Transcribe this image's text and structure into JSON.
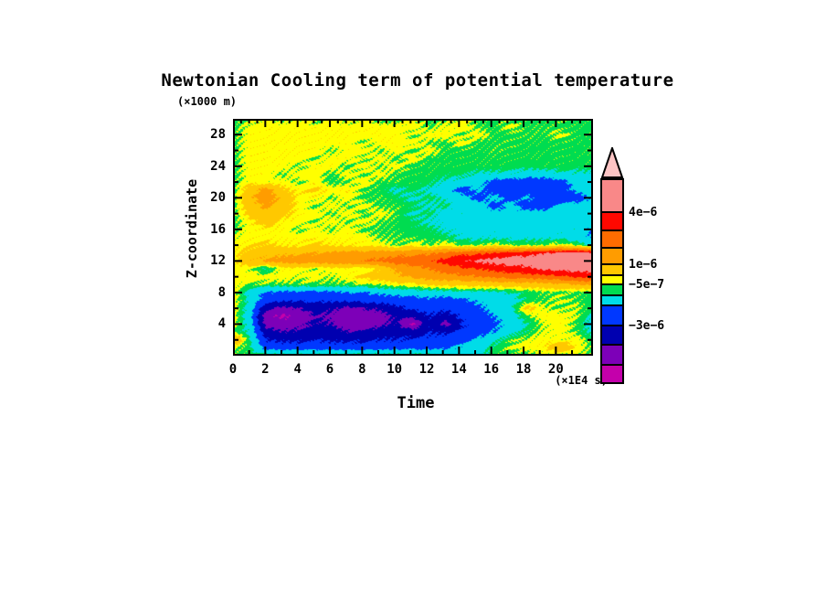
{
  "figure": {
    "title": "Newtonian Cooling term of potential temperature",
    "background": "#ffffff"
  },
  "axes": {
    "y_unit_label": "(×1000 m)",
    "y_label": "Z-coordinate",
    "x_label": "Time",
    "x_unit_label": "(×1E4 s)",
    "x_range": [
      0,
      22.3
    ],
    "y_range": [
      0,
      30
    ],
    "x_ticks_major": [
      0,
      2,
      4,
      6,
      8,
      10,
      12,
      14,
      16,
      18,
      20
    ],
    "x_ticks_minor": [
      1,
      3,
      5,
      7,
      9,
      11,
      13,
      15,
      17,
      19,
      21
    ],
    "y_ticks_major": [
      4,
      8,
      12,
      16,
      20,
      24,
      28
    ],
    "y_ticks_minor": [
      2,
      6,
      10,
      14,
      18,
      22,
      26
    ]
  },
  "colorbar": {
    "arrow_color": "#fcc4c4",
    "box_colors": [
      "#f98888",
      "#ff0800",
      "#ff6c00",
      "#ff9c00",
      "#ffc800",
      "#ffff00",
      "#00dc50",
      "#00dce8",
      "#0038ff",
      "#0000b0",
      "#7d00b8",
      "#c400ab"
    ],
    "labels": [
      {
        "text": "4e−6",
        "box_boundary": 1
      },
      {
        "text": "1e−6",
        "box_boundary": 4
      },
      {
        "text": "−5e−7",
        "box_boundary": 6
      },
      {
        "text": "−3e−6",
        "box_boundary": 9
      }
    ]
  },
  "chart_data": {
    "type": "heatmap",
    "title": "Newtonian Cooling term of potential temperature",
    "xlabel": "Time (×1E4 s)",
    "ylabel": "Z-coordinate (×1000 m)",
    "x_range": [
      0,
      22.3
    ],
    "z_range": [
      0,
      30
    ],
    "value_scale": 1e-07,
    "contour_levels_1e7": [
      -50,
      -40,
      -30,
      -20,
      -10,
      -5,
      0,
      10,
      20,
      30,
      40,
      60
    ],
    "level_colors": [
      "#c400ab",
      "#7d00b8",
      "#0000b0",
      "#0038ff",
      "#00dce8",
      "#00dc50",
      "#ffff00",
      "#ffc800",
      "#ff9c00",
      "#ff6c00",
      "#ff0800",
      "#f98888",
      "#fcc4c4"
    ],
    "x_values": [
      0,
      1,
      2,
      3,
      4,
      5,
      6,
      7,
      8,
      9,
      10,
      11,
      12,
      13,
      14,
      15,
      16,
      17,
      18,
      19,
      20,
      21,
      22
    ],
    "z_values": [
      30,
      29,
      28,
      27,
      26,
      25,
      24,
      23,
      22,
      21,
      20,
      19,
      18,
      17,
      16,
      15,
      14,
      13,
      12,
      11,
      10,
      9,
      8,
      7,
      6,
      5,
      4,
      3,
      2,
      1,
      0
    ],
    "rows_order": "z_descending",
    "grid_1e7": [
      [
        -7,
        -5,
        -3,
        -6,
        -3,
        -7,
        -3,
        -6,
        -3,
        -7,
        -6,
        -3,
        -7,
        -6,
        -3,
        -7,
        -7,
        -6,
        -7,
        -7,
        -6,
        -7,
        -7
      ],
      [
        -7,
        -3,
        -2,
        -2,
        -2,
        -2,
        -2,
        -2,
        -2,
        -2,
        -3,
        -2,
        -6,
        -3,
        -2,
        -6,
        -7,
        -3,
        -7,
        -6,
        -7,
        -7,
        -7
      ],
      [
        -7,
        -2,
        -2,
        -2,
        -2,
        -2,
        -2,
        -2,
        -2,
        -2,
        -2,
        -6,
        -2,
        -2,
        -6,
        -2,
        -7,
        -7,
        -6,
        -7,
        -3,
        -7,
        -7
      ],
      [
        -7,
        -2,
        -2,
        -2,
        -2,
        -2,
        -2,
        -2,
        -6,
        -2,
        -2,
        -2,
        -6,
        -7,
        -2,
        -7,
        -7,
        -6,
        -7,
        -7,
        -7,
        -7,
        -7
      ],
      [
        -7,
        -2,
        -2,
        -2,
        -2,
        -2,
        -6,
        -2,
        -2,
        -6,
        -2,
        -7,
        -2,
        -7,
        -7,
        -7,
        -6,
        -7,
        -7,
        -7,
        -7,
        -7,
        -7
      ],
      [
        -7,
        -2,
        -2,
        -2,
        -2,
        -6,
        -2,
        -2,
        -6,
        -2,
        -7,
        -2,
        -7,
        -7,
        -7,
        -7,
        -7,
        -7,
        -7,
        -7,
        -7,
        -7,
        -7
      ],
      [
        -7,
        -2,
        -2,
        -2,
        -6,
        -2,
        -2,
        -7,
        -2,
        -6,
        -2,
        -7,
        -7,
        -7,
        -7,
        -7,
        -7,
        -7,
        -8,
        -7,
        -7,
        -8,
        -7
      ],
      [
        -7,
        -2,
        -2,
        -6,
        -2,
        -2,
        -7,
        -2,
        -6,
        -2,
        -7,
        -7,
        -7,
        -8,
        -8,
        -12,
        -12,
        -12,
        -15,
        -15,
        -12,
        -12,
        -12
      ],
      [
        -7,
        -2,
        -3,
        -2,
        -6,
        -2,
        -7,
        -6,
        -2,
        -7,
        -6,
        -7,
        -8,
        -12,
        -14,
        -16,
        -25,
        -25,
        -28,
        -26,
        -25,
        -16,
        -15
      ],
      [
        -7,
        5,
        15,
        2,
        -1,
        2,
        -2,
        -1,
        -6,
        -7,
        -12,
        -8,
        -12,
        -15,
        -25,
        -18,
        -25,
        -26,
        -25,
        -26,
        -25,
        -18,
        -15
      ],
      [
        -7,
        8,
        15,
        8,
        -2,
        -2,
        -6,
        -2,
        -7,
        -6,
        -8,
        -12,
        -8,
        -12,
        -15,
        -25,
        -16,
        -25,
        -18,
        -26,
        -25,
        -25,
        -18
      ],
      [
        -7,
        5,
        12,
        5,
        -2,
        -6,
        -2,
        -6,
        -2,
        -7,
        -6,
        -8,
        -12,
        -8,
        -15,
        -12,
        -25,
        -16,
        -25,
        -25,
        -18,
        -16,
        -15
      ],
      [
        -7,
        3,
        8,
        3,
        -2,
        -2,
        -6,
        -2,
        -7,
        -2,
        -6,
        -12,
        -8,
        -15,
        -12,
        -16,
        -15,
        -18,
        -15,
        -16,
        -15,
        -12,
        -12
      ],
      [
        -7,
        -2,
        5,
        -2,
        -2,
        -6,
        -2,
        -6,
        -2,
        -6,
        -7,
        -8,
        -12,
        -12,
        -15,
        -12,
        -15,
        -12,
        -15,
        -12,
        -15,
        -15,
        -12
      ],
      [
        -7,
        -2,
        -2,
        -2,
        -6,
        -2,
        -6,
        -2,
        -7,
        -6,
        -7,
        -8,
        -8,
        -12,
        -12,
        -15,
        -12,
        -15,
        -12,
        -15,
        -12,
        -12,
        -22
      ],
      [
        -4,
        -2,
        -2,
        -2,
        -2,
        -2,
        -2,
        -2,
        -2,
        -6,
        -6,
        -7,
        -7,
        -8,
        -12,
        -12,
        -12,
        -12,
        -12,
        -12,
        -12,
        -15,
        -20
      ],
      [
        -2,
        -1,
        2,
        -1,
        -1,
        2,
        -1,
        -1,
        -2,
        -2,
        -6,
        -2,
        -6,
        -2,
        -6,
        -6,
        -2,
        -6,
        -6,
        -6,
        -2,
        -6,
        -12
      ],
      [
        -2,
        4,
        6,
        8,
        8,
        10,
        12,
        13,
        14,
        15,
        16,
        18,
        18,
        22,
        26,
        28,
        30,
        34,
        36,
        40,
        42,
        44,
        42
      ],
      [
        -2,
        8,
        12,
        14,
        16,
        16,
        17,
        18,
        20,
        22,
        25,
        26,
        28,
        34,
        38,
        42,
        44,
        46,
        46,
        48,
        48,
        50,
        48
      ],
      [
        -2,
        -4,
        -12,
        -2,
        -2,
        -5,
        -2,
        -2,
        -4,
        2,
        12,
        16,
        20,
        25,
        28,
        30,
        34,
        36,
        38,
        42,
        44,
        45,
        44
      ],
      [
        -2,
        -2,
        -2,
        -2,
        -4,
        -2,
        -5,
        -2,
        2,
        4,
        8,
        12,
        15,
        16,
        18,
        20,
        22,
        24,
        25,
        26,
        28,
        32,
        34
      ],
      [
        -2,
        -5,
        -6,
        -6,
        -6,
        -6,
        -6,
        -6,
        -5,
        -4,
        -2,
        -2,
        2,
        3,
        3,
        4,
        4,
        5,
        5,
        6,
        8,
        10,
        12
      ],
      [
        -2,
        -14,
        -20,
        -22,
        -22,
        -22,
        -22,
        -20,
        -20,
        -18,
        -16,
        -14,
        -14,
        -14,
        -12,
        -12,
        -12,
        -10,
        -8,
        -6,
        -6,
        -6,
        -8
      ],
      [
        -2,
        -12,
        -26,
        -28,
        -28,
        -28,
        -28,
        -28,
        -26,
        -25,
        -25,
        -25,
        -22,
        -25,
        -22,
        -18,
        -16,
        -14,
        -8,
        -6,
        -4,
        -6,
        -8
      ],
      [
        -2,
        -14,
        -38,
        -42,
        -40,
        -36,
        -38,
        -42,
        -40,
        -38,
        -32,
        -28,
        -26,
        -28,
        -25,
        -22,
        -16,
        -12,
        3,
        -4,
        -6,
        -4,
        -8
      ],
      [
        -2,
        -16,
        -46,
        -52,
        -46,
        -40,
        -42,
        -48,
        -46,
        -44,
        -38,
        -36,
        -30,
        -34,
        -28,
        -25,
        -20,
        -14,
        -6,
        -2,
        -2,
        -4,
        -12
      ],
      [
        -2,
        -14,
        -44,
        -46,
        -44,
        -38,
        -40,
        -46,
        -48,
        -42,
        -38,
        -52,
        -32,
        -44,
        -30,
        -26,
        -22,
        -16,
        -10,
        -4,
        -2,
        -6,
        -14
      ],
      [
        -6,
        -12,
        -36,
        -40,
        -38,
        -36,
        -36,
        -40,
        -38,
        -36,
        -34,
        -36,
        -30,
        -32,
        -28,
        -25,
        -20,
        -14,
        -8,
        -4,
        -2,
        -6,
        -12
      ],
      [
        12,
        -10,
        -30,
        -32,
        -32,
        -30,
        -32,
        -32,
        -32,
        -30,
        -30,
        -28,
        -28,
        -26,
        -25,
        -18,
        -12,
        -6,
        -4,
        -2,
        -4,
        -2,
        -8
      ],
      [
        -4,
        -8,
        -25,
        -26,
        -26,
        -26,
        -26,
        -26,
        -25,
        -25,
        -25,
        -24,
        -24,
        -22,
        -18,
        -14,
        -8,
        -4,
        -2,
        -2,
        10,
        -2,
        -6
      ],
      [
        -7,
        -7,
        -7,
        -7,
        -7,
        -7,
        -7,
        -7,
        -7,
        -7,
        -7,
        -7,
        -7,
        -12,
        -14,
        -12,
        -7,
        -7,
        -7,
        -4,
        -7,
        -4,
        -7
      ]
    ]
  }
}
